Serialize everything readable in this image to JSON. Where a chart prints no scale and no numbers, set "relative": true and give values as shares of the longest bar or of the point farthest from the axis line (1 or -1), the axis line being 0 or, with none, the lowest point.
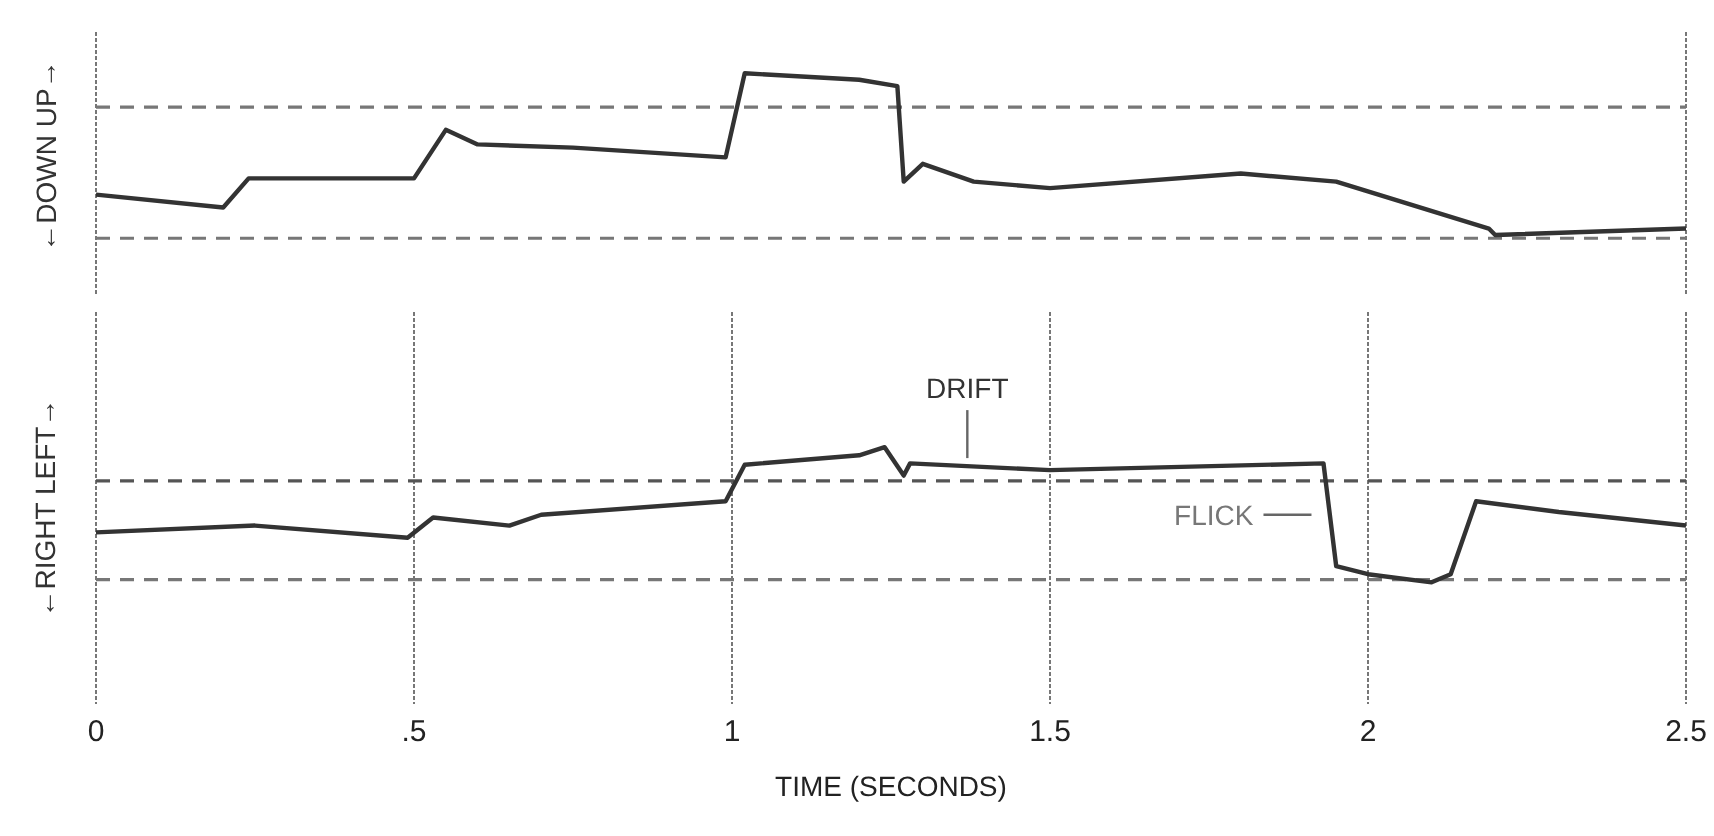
{
  "chart_data": [
    {
      "type": "line",
      "ylabel": "←DOWN UP→",
      "relative": true,
      "xlim": [
        0,
        2.5
      ],
      "xticks": [
        0,
        0.5,
        1,
        1.5,
        2,
        2.5
      ],
      "tick_labels": false,
      "grid": "x",
      "x": [
        0,
        0.2,
        0.24,
        0.5,
        0.55,
        0.6,
        0.75,
        0.99,
        1.02,
        1.2,
        1.26,
        1.27,
        1.3,
        1.38,
        1.5,
        1.8,
        1.95,
        2.19,
        2.2,
        2.5
      ],
      "series": [
        {
          "color": "#333333",
          "values": [
            0.25,
            0.17,
            0.35,
            0.35,
            0.65,
            0.56,
            0.54,
            0.48,
            1,
            0.96,
            0.92,
            0.33,
            0.44,
            0.33,
            0.29,
            0.38,
            0.33,
            0.04,
            0,
            0.04
          ]
        }
      ],
      "ref_lines": [
        {
          "axis": "y",
          "value": 0.79,
          "color": "#777777",
          "line_style": "dashed"
        },
        {
          "axis": "y",
          "value": -0.02,
          "color": "#777777",
          "line_style": "dashed"
        }
      ]
    },
    {
      "type": "line",
      "ylabel": "←RIGHT LEFT→",
      "xlabel": "TIME (SECONDS)",
      "relative": true,
      "xlim": [
        0,
        2.5
      ],
      "xticks": [
        0,
        {
          "value": 0.5,
          "label": ".5"
        },
        1,
        1.5,
        2,
        2.5
      ],
      "tick_labels": "x",
      "grid": "x",
      "x": [
        0,
        0.25,
        0.49,
        0.53,
        0.65,
        0.7,
        0.99,
        1.02,
        1.2,
        1.24,
        1.27,
        1.28,
        1.5,
        1.93,
        1.95,
        2,
        2.1,
        2.13,
        2.17,
        2.3,
        2.5
      ],
      "series": [
        {
          "color": "#333333",
          "values": [
            0.37,
            0.42,
            0.33,
            0.48,
            0.42,
            0.5,
            0.6,
            0.87,
            0.94,
            1,
            0.79,
            0.88,
            0.83,
            0.88,
            0.12,
            0.06,
            0,
            0.06,
            0.6,
            0.52,
            0.42
          ]
        }
      ],
      "ref_lines": [
        {
          "axis": "y",
          "value": 0.75,
          "color": "#555555",
          "line_style": "dashed"
        },
        {
          "axis": "y",
          "value": 0.02,
          "color": "#777777",
          "line_style": "dashed"
        }
      ],
      "annotations": [
        {
          "text": "DRIFT",
          "x": 1.37,
          "y": 0.86
        },
        {
          "text": "FLICK",
          "x": 1.93,
          "y": 0.5
        }
      ]
    }
  ]
}
